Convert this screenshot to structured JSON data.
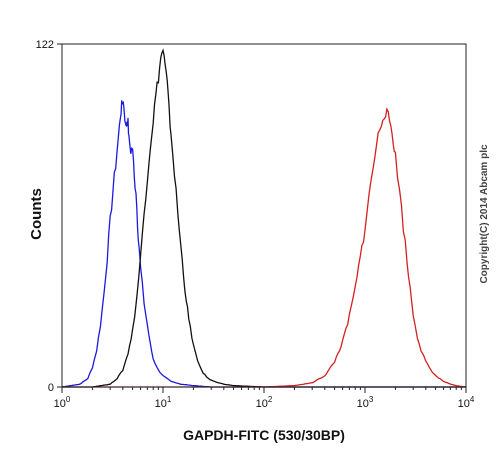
{
  "chart_data": {
    "type": "line",
    "title": "",
    "xlabel": "GAPDH-FITC (530/30BP)",
    "ylabel": "Counts",
    "xscale": "log",
    "xlim": [
      1,
      10000
    ],
    "ylim": [
      0,
      122
    ],
    "x_ticks": [
      {
        "base": "10",
        "exp": "0",
        "value": 1
      },
      {
        "base": "10",
        "exp": "1",
        "value": 10
      },
      {
        "base": "10",
        "exp": "2",
        "value": 100
      },
      {
        "base": "10",
        "exp": "3",
        "value": 1000
      },
      {
        "base": "10",
        "exp": "4",
        "value": 10000
      }
    ],
    "y_ticks": [
      {
        "label": "0",
        "value": 0
      },
      {
        "label": "122",
        "value": 122
      }
    ],
    "grid": false,
    "legend": "none",
    "watermark": "Copyright(C) 2014 Abcam plc",
    "series": [
      {
        "color": "#1a1adf",
        "x": [
          1,
          1.5,
          1.8,
          2.0,
          2.2,
          2.4,
          2.6,
          2.8,
          3.0,
          3.2,
          3.4,
          3.6,
          3.8,
          3.9,
          4.0,
          4.1,
          4.3,
          4.4,
          4.5,
          4.6,
          4.8,
          5.0,
          5.2,
          5.4,
          5.6,
          5.8,
          6.0,
          6.5,
          7.0,
          7.5,
          8.0,
          9.0,
          10,
          12,
          15,
          20,
          30,
          100,
          1000,
          10000
        ],
        "y": [
          0,
          1,
          3,
          7,
          13,
          22,
          33,
          46,
          59,
          70,
          79,
          88,
          97,
          100,
          102,
          100,
          92,
          95,
          94,
          88,
          84,
          85,
          74,
          70,
          58,
          50,
          42,
          30,
          22,
          15,
          10,
          6,
          4,
          2,
          1,
          0.5,
          0,
          0,
          0,
          0
        ]
      },
      {
        "color": "#111111",
        "x": [
          1,
          2,
          3,
          3.5,
          4,
          4.5,
          5,
          5.5,
          6,
          6.5,
          7,
          7.5,
          8,
          8.5,
          9,
          9.5,
          10,
          10.5,
          11,
          11.5,
          12,
          13,
          14,
          15,
          16,
          17,
          18,
          20,
          22,
          25,
          28,
          32,
          40,
          50,
          100,
          1000,
          10000
        ],
        "y": [
          0,
          0,
          1,
          3,
          6,
          12,
          20,
          32,
          46,
          62,
          75,
          86,
          95,
          104,
          110,
          117,
          120,
          114,
          108,
          98,
          90,
          76,
          62,
          50,
          40,
          31,
          24,
          15,
          9,
          5,
          3,
          2,
          1,
          0.5,
          0,
          0,
          0
        ]
      },
      {
        "color": "#d42020",
        "x": [
          1,
          100,
          200,
          300,
          400,
          500,
          600,
          700,
          800,
          900,
          1000,
          1100,
          1200,
          1300,
          1400,
          1500,
          1600,
          1700,
          1800,
          1900,
          2000,
          2200,
          2400,
          2600,
          2800,
          3000,
          3300,
          3600,
          4000,
          4500,
          5000,
          6000,
          7000,
          8000,
          9000,
          10000
        ],
        "y": [
          0,
          0,
          0.5,
          1.5,
          4,
          9,
          16,
          25,
          35,
          46,
          57,
          68,
          78,
          86,
          92,
          96,
          98,
          96,
          93,
          88,
          82,
          70,
          57,
          45,
          35,
          26,
          18,
          13,
          9,
          6,
          4,
          2,
          1,
          0.5,
          0.2,
          0
        ]
      }
    ]
  }
}
